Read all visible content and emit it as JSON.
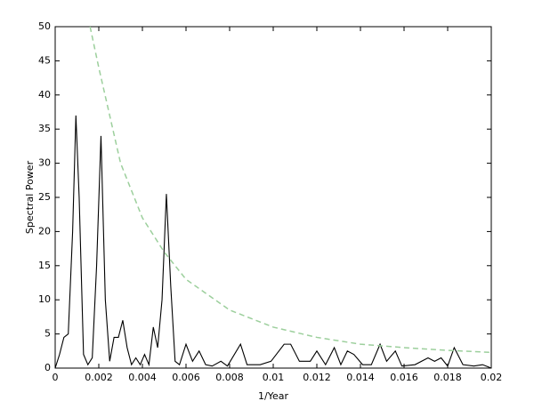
{
  "chart_data": {
    "type": "line",
    "xlabel": "1/Year",
    "ylabel": "Spectral Power",
    "xlim": [
      0,
      0.02
    ],
    "ylim": [
      0,
      50
    ],
    "xticks": [
      0,
      0.002,
      0.004,
      0.006,
      0.008,
      0.01,
      0.012,
      0.014,
      0.016,
      0.018,
      0.02
    ],
    "yticks": [
      0,
      5,
      10,
      15,
      20,
      25,
      30,
      35,
      40,
      45,
      50
    ],
    "series": [
      {
        "color": "#000000",
        "dashed": false,
        "x": [
          0,
          0.0002,
          0.0004,
          0.0006,
          0.0008,
          0.00095,
          0.0011,
          0.0013,
          0.0015,
          0.0017,
          0.0019,
          0.0021,
          0.0023,
          0.0025,
          0.0027,
          0.0029,
          0.0031,
          0.0033,
          0.0035,
          0.0037,
          0.0039,
          0.0041,
          0.0043,
          0.0045,
          0.0047,
          0.0049,
          0.0051,
          0.0053,
          0.0055,
          0.0057,
          0.006,
          0.0063,
          0.0066,
          0.0069,
          0.0072,
          0.0076,
          0.0079,
          0.0085,
          0.0088,
          0.0094,
          0.0099,
          0.0105,
          0.0108,
          0.0112,
          0.0117,
          0.012,
          0.0124,
          0.0128,
          0.0131,
          0.0134,
          0.0137,
          0.0141,
          0.0145,
          0.0149,
          0.0152,
          0.0156,
          0.0159,
          0.0165,
          0.0171,
          0.0174,
          0.0177,
          0.018,
          0.0183,
          0.0187,
          0.0192,
          0.0196,
          0.02
        ],
        "values": [
          0,
          2,
          4.5,
          5,
          20,
          37,
          25,
          2,
          0.5,
          1.5,
          15,
          34,
          10,
          1,
          4.5,
          4.5,
          7,
          3,
          0.5,
          1.5,
          0.5,
          2,
          0.5,
          6,
          3,
          10,
          25.5,
          12,
          1,
          0.5,
          3.5,
          1,
          2.5,
          0.5,
          0.3,
          1,
          0.3,
          3.5,
          0.5,
          0.5,
          1,
          3.5,
          3.5,
          1,
          1,
          2.5,
          0.5,
          3,
          0.5,
          2.5,
          2,
          0.5,
          0.5,
          3.5,
          1,
          2.5,
          0.3,
          0.5,
          1.5,
          1,
          1.5,
          0.3,
          3,
          0.5,
          0.3,
          0.5,
          0
        ]
      },
      {
        "color": "#9ccf9c",
        "dashed": true,
        "x": [
          0.0016,
          0.002,
          0.003,
          0.004,
          0.005,
          0.006,
          0.008,
          0.01,
          0.012,
          0.014,
          0.016,
          0.018,
          0.02
        ],
        "values": [
          50,
          44,
          30,
          22,
          17,
          13,
          8.5,
          6,
          4.5,
          3.5,
          3,
          2.6,
          2.3
        ]
      }
    ]
  }
}
